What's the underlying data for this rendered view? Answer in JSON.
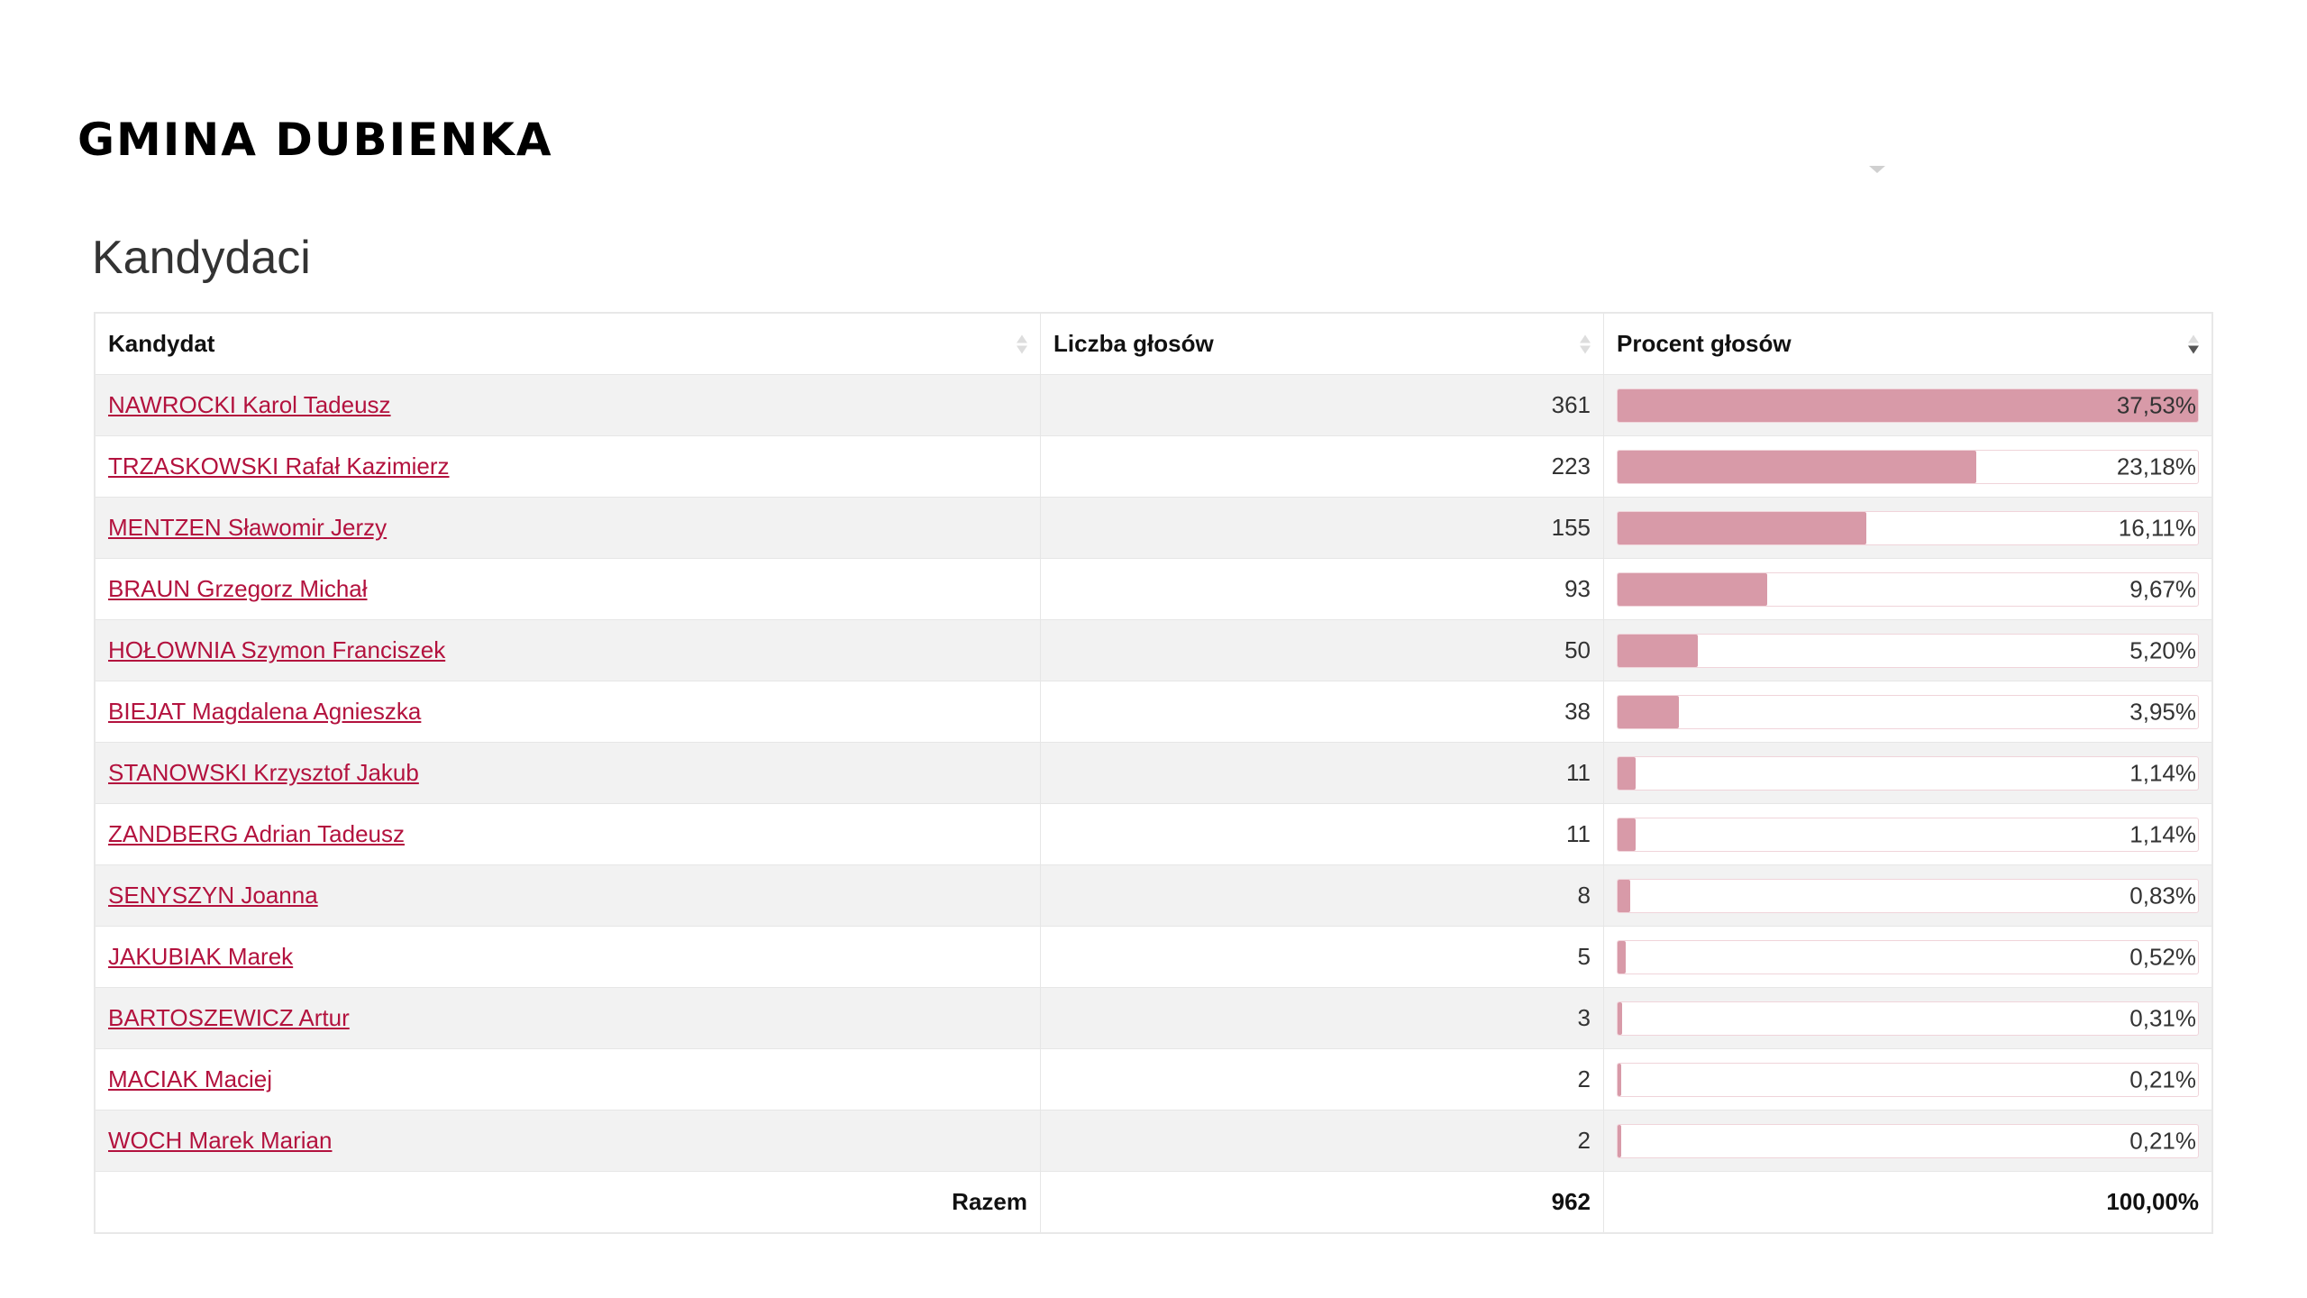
{
  "header": {
    "title": "GMINA DUBIENKA"
  },
  "section": {
    "title": "Kandydaci"
  },
  "table": {
    "columns": [
      "Kandydat",
      "Liczba głosów",
      "Procent głosów"
    ],
    "rows": [
      {
        "name": "NAWROCKI Karol Tadeusz",
        "votes": "361",
        "percent": "37,53%",
        "pct": 37.53
      },
      {
        "name": "TRZASKOWSKI Rafał Kazimierz",
        "votes": "223",
        "percent": "23,18%",
        "pct": 23.18
      },
      {
        "name": "MENTZEN Sławomir Jerzy",
        "votes": "155",
        "percent": "16,11%",
        "pct": 16.11
      },
      {
        "name": "BRAUN Grzegorz Michał",
        "votes": "93",
        "percent": "9,67%",
        "pct": 9.67
      },
      {
        "name": "HOŁOWNIA Szymon Franciszek",
        "votes": "50",
        "percent": "5,20%",
        "pct": 5.2
      },
      {
        "name": "BIEJAT Magdalena Agnieszka",
        "votes": "38",
        "percent": "3,95%",
        "pct": 3.95
      },
      {
        "name": "STANOWSKI Krzysztof Jakub",
        "votes": "11",
        "percent": "1,14%",
        "pct": 1.14
      },
      {
        "name": "ZANDBERG Adrian Tadeusz",
        "votes": "11",
        "percent": "1,14%",
        "pct": 1.14
      },
      {
        "name": "SENYSZYN Joanna",
        "votes": "8",
        "percent": "0,83%",
        "pct": 0.83
      },
      {
        "name": "JAKUBIAK Marek",
        "votes": "5",
        "percent": "0,52%",
        "pct": 0.52
      },
      {
        "name": "BARTOSZEWICZ Artur",
        "votes": "3",
        "percent": "0,31%",
        "pct": 0.31
      },
      {
        "name": "MACIAK Maciej",
        "votes": "2",
        "percent": "0,21%",
        "pct": 0.21
      },
      {
        "name": "WOCH Marek Marian",
        "votes": "2",
        "percent": "0,21%",
        "pct": 0.21
      }
    ],
    "footer": {
      "label": "Razem",
      "votes": "962",
      "percent": "100,00%"
    }
  },
  "colors": {
    "link": "#b3123e",
    "bar_fill": "#d89aa8"
  }
}
